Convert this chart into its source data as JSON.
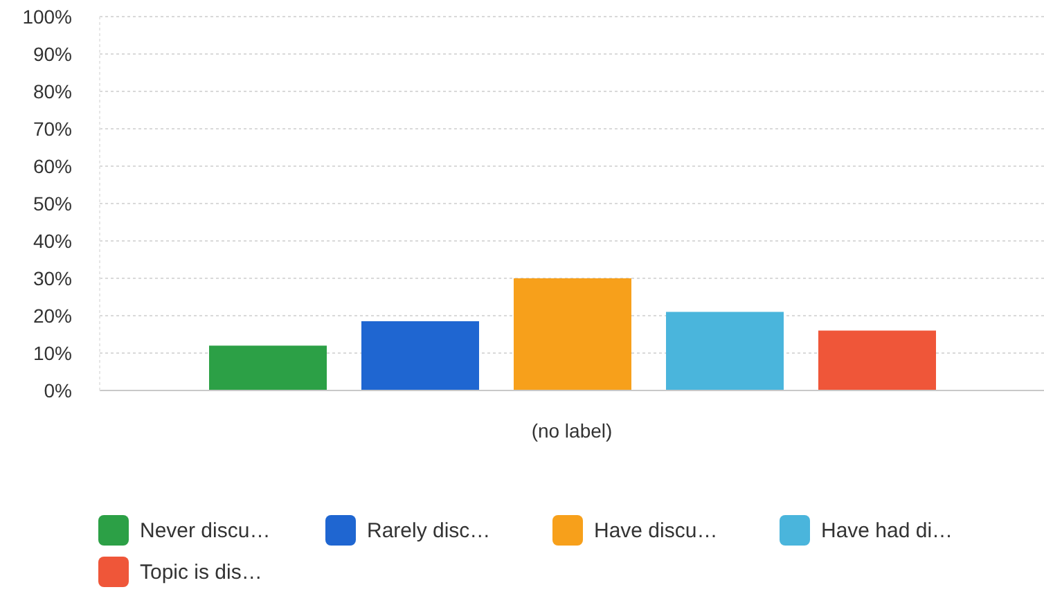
{
  "chart_data": {
    "type": "bar",
    "categories": [
      "(no label)"
    ],
    "series": [
      {
        "name": "Never discu…",
        "color": "#2ca046",
        "values": [
          12
        ]
      },
      {
        "name": "Rarely disc…",
        "color": "#1f66d1",
        "values": [
          18.5
        ]
      },
      {
        "name": "Have discu…",
        "color": "#f7a01b",
        "values": [
          30
        ]
      },
      {
        "name": "Have had di…",
        "color": "#4ab5dc",
        "values": [
          21
        ]
      },
      {
        "name": "Topic is dis…",
        "color": "#ef5639",
        "values": [
          16
        ]
      }
    ],
    "ylim": [
      0,
      100
    ],
    "yticks": [
      {
        "value": 0,
        "label": "0%"
      },
      {
        "value": 10,
        "label": "10%"
      },
      {
        "value": 20,
        "label": "20%"
      },
      {
        "value": 30,
        "label": "30%"
      },
      {
        "value": 40,
        "label": "40%"
      },
      {
        "value": 50,
        "label": "50%"
      },
      {
        "value": 60,
        "label": "60%"
      },
      {
        "value": 70,
        "label": "70%"
      },
      {
        "value": 80,
        "label": "80%"
      },
      {
        "value": 90,
        "label": "90%"
      },
      {
        "value": 100,
        "label": "100%"
      }
    ],
    "grid": "y",
    "legend": "bottom"
  }
}
